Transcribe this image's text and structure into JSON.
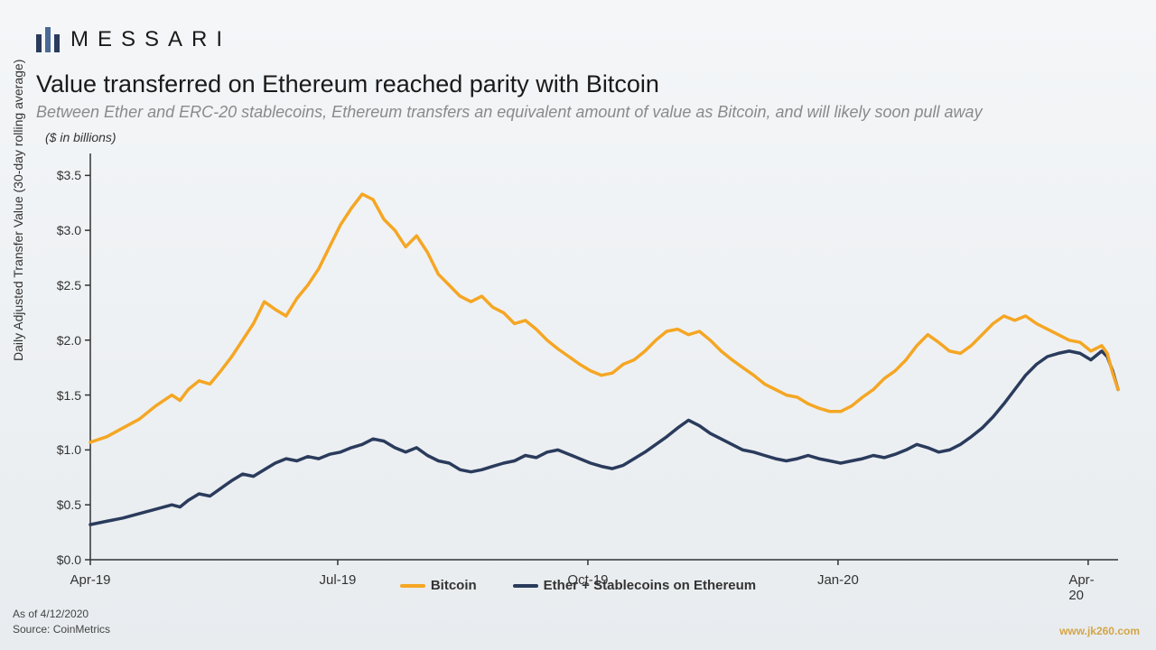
{
  "brand": {
    "name": "MESSARI",
    "logo_color": "#2a3b5c"
  },
  "title": "Value transferred on Ethereum reached parity with Bitcoin",
  "subtitle": "Between Ether and ERC-20 stablecoins, Ethereum transfers an equivalent amount of value as Bitcoin, and will likely soon pull away",
  "y_unit": "($ in billions)",
  "y_axis_label": "Daily Adjusted Transfer Value (30-day rolling average)",
  "footer_date": "As of 4/12/2020",
  "footer_source": "Source: CoinMetrics",
  "watermark": "www.jk260.com",
  "chart": {
    "type": "line",
    "background_gradient": [
      "#f4f6f8",
      "#e8ecef"
    ],
    "axis_color": "#333333",
    "line_width": 3.5,
    "ylim": [
      0.0,
      3.7
    ],
    "yticks": [
      0.0,
      0.5,
      1.0,
      1.5,
      2.0,
      2.5,
      3.0,
      3.5
    ],
    "ytick_labels": [
      "$0.0",
      "$0.5",
      "$1.0",
      "$1.5",
      "$2.0",
      "$2.5",
      "$3.0",
      "$3.5"
    ],
    "tick_length": 6,
    "x_range": [
      0,
      378
    ],
    "xticks": [
      0,
      91,
      183,
      275,
      367
    ],
    "xtick_labels": [
      "Apr-19",
      "Jul-19",
      "Oct-19",
      "Jan-20",
      "Apr-20"
    ],
    "legend": [
      {
        "label": "Bitcoin",
        "color": "#f5a623"
      },
      {
        "label": "Ether + Stablecoins on Ethereum",
        "color": "#2a3b5c"
      }
    ],
    "series": {
      "bitcoin": {
        "color": "#f5a623",
        "data": [
          [
            0,
            1.07
          ],
          [
            6,
            1.12
          ],
          [
            12,
            1.2
          ],
          [
            18,
            1.28
          ],
          [
            24,
            1.4
          ],
          [
            30,
            1.5
          ],
          [
            33,
            1.45
          ],
          [
            36,
            1.55
          ],
          [
            40,
            1.63
          ],
          [
            44,
            1.6
          ],
          [
            48,
            1.72
          ],
          [
            52,
            1.85
          ],
          [
            56,
            2.0
          ],
          [
            60,
            2.15
          ],
          [
            64,
            2.35
          ],
          [
            68,
            2.28
          ],
          [
            72,
            2.22
          ],
          [
            76,
            2.38
          ],
          [
            80,
            2.5
          ],
          [
            84,
            2.65
          ],
          [
            88,
            2.85
          ],
          [
            92,
            3.05
          ],
          [
            96,
            3.2
          ],
          [
            100,
            3.33
          ],
          [
            104,
            3.28
          ],
          [
            108,
            3.1
          ],
          [
            112,
            3.0
          ],
          [
            116,
            2.85
          ],
          [
            120,
            2.95
          ],
          [
            124,
            2.8
          ],
          [
            128,
            2.6
          ],
          [
            132,
            2.5
          ],
          [
            136,
            2.4
          ],
          [
            140,
            2.35
          ],
          [
            144,
            2.4
          ],
          [
            148,
            2.3
          ],
          [
            152,
            2.25
          ],
          [
            156,
            2.15
          ],
          [
            160,
            2.18
          ],
          [
            164,
            2.1
          ],
          [
            168,
            2.0
          ],
          [
            172,
            1.92
          ],
          [
            176,
            1.85
          ],
          [
            180,
            1.78
          ],
          [
            184,
            1.72
          ],
          [
            188,
            1.68
          ],
          [
            192,
            1.7
          ],
          [
            196,
            1.78
          ],
          [
            200,
            1.82
          ],
          [
            204,
            1.9
          ],
          [
            208,
            2.0
          ],
          [
            212,
            2.08
          ],
          [
            216,
            2.1
          ],
          [
            220,
            2.05
          ],
          [
            224,
            2.08
          ],
          [
            228,
            2.0
          ],
          [
            232,
            1.9
          ],
          [
            236,
            1.82
          ],
          [
            240,
            1.75
          ],
          [
            244,
            1.68
          ],
          [
            248,
            1.6
          ],
          [
            252,
            1.55
          ],
          [
            256,
            1.5
          ],
          [
            260,
            1.48
          ],
          [
            264,
            1.42
          ],
          [
            268,
            1.38
          ],
          [
            272,
            1.35
          ],
          [
            276,
            1.35
          ],
          [
            280,
            1.4
          ],
          [
            284,
            1.48
          ],
          [
            288,
            1.55
          ],
          [
            292,
            1.65
          ],
          [
            296,
            1.72
          ],
          [
            300,
            1.82
          ],
          [
            304,
            1.95
          ],
          [
            308,
            2.05
          ],
          [
            312,
            1.98
          ],
          [
            316,
            1.9
          ],
          [
            320,
            1.88
          ],
          [
            324,
            1.95
          ],
          [
            328,
            2.05
          ],
          [
            332,
            2.15
          ],
          [
            336,
            2.22
          ],
          [
            340,
            2.18
          ],
          [
            344,
            2.22
          ],
          [
            348,
            2.15
          ],
          [
            352,
            2.1
          ],
          [
            356,
            2.05
          ],
          [
            360,
            2.0
          ],
          [
            364,
            1.98
          ],
          [
            368,
            1.9
          ],
          [
            372,
            1.95
          ],
          [
            374,
            1.88
          ],
          [
            376,
            1.7
          ],
          [
            378,
            1.55
          ]
        ]
      },
      "ethereum": {
        "color": "#2a3b5c",
        "data": [
          [
            0,
            0.32
          ],
          [
            6,
            0.35
          ],
          [
            12,
            0.38
          ],
          [
            18,
            0.42
          ],
          [
            24,
            0.46
          ],
          [
            30,
            0.5
          ],
          [
            33,
            0.48
          ],
          [
            36,
            0.54
          ],
          [
            40,
            0.6
          ],
          [
            44,
            0.58
          ],
          [
            48,
            0.65
          ],
          [
            52,
            0.72
          ],
          [
            56,
            0.78
          ],
          [
            60,
            0.76
          ],
          [
            64,
            0.82
          ],
          [
            68,
            0.88
          ],
          [
            72,
            0.92
          ],
          [
            76,
            0.9
          ],
          [
            80,
            0.94
          ],
          [
            84,
            0.92
          ],
          [
            88,
            0.96
          ],
          [
            92,
            0.98
          ],
          [
            96,
            1.02
          ],
          [
            100,
            1.05
          ],
          [
            104,
            1.1
          ],
          [
            108,
            1.08
          ],
          [
            112,
            1.02
          ],
          [
            116,
            0.98
          ],
          [
            120,
            1.02
          ],
          [
            124,
            0.95
          ],
          [
            128,
            0.9
          ],
          [
            132,
            0.88
          ],
          [
            136,
            0.82
          ],
          [
            140,
            0.8
          ],
          [
            144,
            0.82
          ],
          [
            148,
            0.85
          ],
          [
            152,
            0.88
          ],
          [
            156,
            0.9
          ],
          [
            160,
            0.95
          ],
          [
            164,
            0.93
          ],
          [
            168,
            0.98
          ],
          [
            172,
            1.0
          ],
          [
            176,
            0.96
          ],
          [
            180,
            0.92
          ],
          [
            184,
            0.88
          ],
          [
            188,
            0.85
          ],
          [
            192,
            0.83
          ],
          [
            196,
            0.86
          ],
          [
            200,
            0.92
          ],
          [
            204,
            0.98
          ],
          [
            208,
            1.05
          ],
          [
            212,
            1.12
          ],
          [
            216,
            1.2
          ],
          [
            220,
            1.27
          ],
          [
            224,
            1.22
          ],
          [
            228,
            1.15
          ],
          [
            232,
            1.1
          ],
          [
            236,
            1.05
          ],
          [
            240,
            1.0
          ],
          [
            244,
            0.98
          ],
          [
            248,
            0.95
          ],
          [
            252,
            0.92
          ],
          [
            256,
            0.9
          ],
          [
            260,
            0.92
          ],
          [
            264,
            0.95
          ],
          [
            268,
            0.92
          ],
          [
            272,
            0.9
          ],
          [
            276,
            0.88
          ],
          [
            280,
            0.9
          ],
          [
            284,
            0.92
          ],
          [
            288,
            0.95
          ],
          [
            292,
            0.93
          ],
          [
            296,
            0.96
          ],
          [
            300,
            1.0
          ],
          [
            304,
            1.05
          ],
          [
            308,
            1.02
          ],
          [
            312,
            0.98
          ],
          [
            316,
            1.0
          ],
          [
            320,
            1.05
          ],
          [
            324,
            1.12
          ],
          [
            328,
            1.2
          ],
          [
            332,
            1.3
          ],
          [
            336,
            1.42
          ],
          [
            340,
            1.55
          ],
          [
            344,
            1.68
          ],
          [
            348,
            1.78
          ],
          [
            352,
            1.85
          ],
          [
            356,
            1.88
          ],
          [
            360,
            1.9
          ],
          [
            364,
            1.88
          ],
          [
            368,
            1.82
          ],
          [
            372,
            1.9
          ],
          [
            374,
            1.85
          ],
          [
            376,
            1.72
          ],
          [
            378,
            1.55
          ]
        ]
      }
    }
  }
}
